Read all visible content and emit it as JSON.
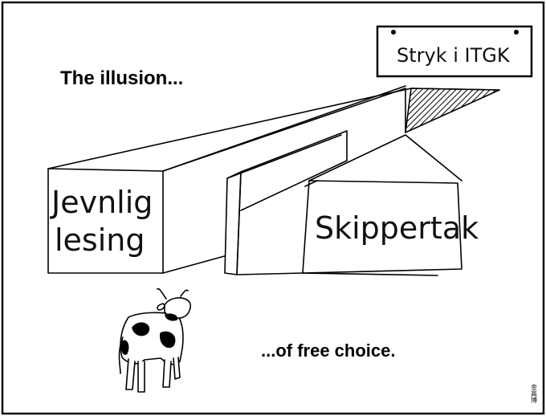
{
  "comic": {
    "caption_top": "The illusion...",
    "caption_bottom": "...of free choice.",
    "sign_text": "Stryk i ITGK",
    "left_wall": {
      "line1": "Jevnlig",
      "line2": "lesing"
    },
    "right_wall": "Skippertak",
    "signature_stamp": "金高博"
  },
  "colors": {
    "ink": "#000000",
    "paper": "#ffffff",
    "frame": "#111111"
  }
}
